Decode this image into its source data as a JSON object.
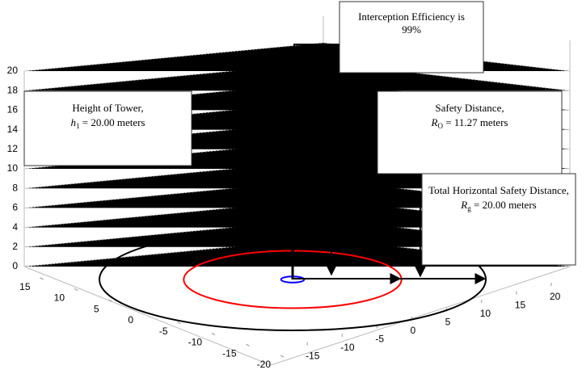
{
  "chart_data": {
    "type": "rings3d",
    "zlim": [
      0,
      20
    ],
    "zticks": [
      0,
      2,
      4,
      6,
      8,
      10,
      12,
      14,
      16,
      18,
      20
    ],
    "xlim": [
      -20,
      20
    ],
    "xticks": [
      -15,
      -10,
      -5,
      0,
      5,
      10,
      15,
      20
    ],
    "ylim": [
      -20,
      20
    ],
    "yticks": [
      15,
      10,
      5,
      0,
      -5,
      -10,
      -15,
      -20
    ],
    "tower_height": 20,
    "rings": [
      {
        "radius": 20,
        "color": "#000000"
      },
      {
        "radius": 11.27,
        "color": "#ff0000"
      },
      {
        "radius": 1.2,
        "color": "#0000ff"
      }
    ],
    "annotations": [
      {
        "line1": "Interception Efficiency is",
        "line2": "99%"
      },
      {
        "line1": "Height of Tower,",
        "var": "h",
        "sub": "1",
        "rest": " = 20.00 meters"
      },
      {
        "line1": "Safety Distance,",
        "var": "R",
        "sub": "O",
        "rest": " = 11.27 meters"
      },
      {
        "line1": "Total Horizontal Safety Distance,",
        "var": "R",
        "sub": "g",
        "rest": " = 20.00 meters"
      }
    ]
  }
}
